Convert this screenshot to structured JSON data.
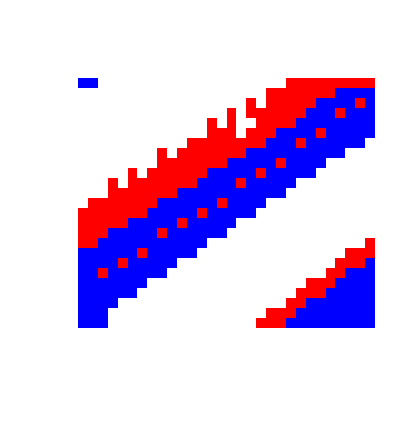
{
  "chart_data": {
    "type": "heatmap",
    "tick_labels": false,
    "colors": [
      "#ffffff",
      "#ff0000",
      "#0000ff"
    ],
    "cells": [
      [
        2,
        2,
        0,
        0,
        0,
        0,
        0,
        0,
        0,
        0,
        0,
        0,
        0,
        0,
        0,
        0,
        0,
        0,
        0,
        0,
        0,
        1,
        1,
        1,
        1,
        1,
        1,
        1,
        1,
        1
      ],
      [
        0,
        0,
        0,
        0,
        0,
        0,
        0,
        0,
        0,
        0,
        0,
        0,
        0,
        0,
        0,
        0,
        0,
        0,
        0,
        1,
        1,
        1,
        1,
        1,
        1,
        1,
        2,
        2,
        2,
        2
      ],
      [
        0,
        0,
        0,
        0,
        0,
        0,
        0,
        0,
        0,
        0,
        0,
        0,
        0,
        0,
        0,
        0,
        0,
        1,
        0,
        1,
        1,
        1,
        1,
        1,
        2,
        2,
        2,
        2,
        1,
        2
      ],
      [
        0,
        0,
        0,
        0,
        0,
        0,
        0,
        0,
        0,
        0,
        0,
        0,
        0,
        0,
        0,
        1,
        0,
        1,
        1,
        1,
        1,
        1,
        1,
        2,
        2,
        2,
        1,
        2,
        2,
        2
      ],
      [
        0,
        0,
        0,
        0,
        0,
        0,
        0,
        0,
        0,
        0,
        0,
        0,
        0,
        1,
        0,
        1,
        0,
        0,
        1,
        1,
        1,
        1,
        2,
        2,
        2,
        2,
        2,
        2,
        2,
        2
      ],
      [
        0,
        0,
        0,
        0,
        0,
        0,
        0,
        0,
        0,
        0,
        0,
        0,
        0,
        1,
        1,
        1,
        0,
        1,
        1,
        1,
        2,
        2,
        2,
        2,
        1,
        2,
        2,
        2,
        2,
        2
      ],
      [
        0,
        0,
        0,
        0,
        0,
        0,
        0,
        0,
        0,
        0,
        0,
        1,
        1,
        1,
        1,
        1,
        1,
        1,
        1,
        2,
        2,
        2,
        1,
        2,
        2,
        2,
        2,
        2,
        2,
        0
      ],
      [
        0,
        0,
        0,
        0,
        0,
        0,
        0,
        0,
        1,
        0,
        1,
        1,
        1,
        1,
        1,
        1,
        1,
        2,
        2,
        2,
        2,
        2,
        2,
        2,
        2,
        2,
        2,
        0,
        0,
        0
      ],
      [
        0,
        0,
        0,
        0,
        0,
        0,
        0,
        0,
        1,
        1,
        1,
        1,
        1,
        1,
        1,
        2,
        2,
        2,
        2,
        2,
        1,
        2,
        2,
        2,
        2,
        0,
        0,
        0,
        0,
        0
      ],
      [
        0,
        0,
        0,
        0,
        0,
        1,
        0,
        1,
        1,
        1,
        1,
        1,
        1,
        2,
        2,
        2,
        2,
        2,
        1,
        2,
        2,
        2,
        2,
        2,
        0,
        0,
        0,
        0,
        0,
        0
      ],
      [
        0,
        0,
        0,
        1,
        0,
        1,
        1,
        1,
        1,
        1,
        1,
        1,
        2,
        2,
        2,
        2,
        1,
        2,
        2,
        2,
        2,
        2,
        0,
        0,
        0,
        0,
        0,
        0,
        0,
        0
      ],
      [
        0,
        0,
        0,
        1,
        1,
        1,
        1,
        1,
        1,
        1,
        2,
        2,
        2,
        2,
        2,
        2,
        2,
        2,
        2,
        2,
        2,
        0,
        0,
        0,
        0,
        0,
        0,
        0,
        0,
        0
      ],
      [
        0,
        1,
        1,
        1,
        1,
        1,
        1,
        1,
        2,
        2,
        2,
        2,
        2,
        2,
        1,
        2,
        2,
        2,
        2,
        0,
        0,
        0,
        0,
        0,
        0,
        0,
        0,
        0,
        0,
        0
      ],
      [
        1,
        1,
        1,
        1,
        1,
        1,
        1,
        2,
        2,
        2,
        2,
        2,
        1,
        2,
        2,
        2,
        2,
        2,
        0,
        0,
        0,
        0,
        0,
        0,
        0,
        0,
        0,
        0,
        0,
        0
      ],
      [
        1,
        1,
        1,
        1,
        1,
        2,
        2,
        2,
        2,
        2,
        1,
        2,
        2,
        2,
        2,
        2,
        0,
        0,
        0,
        0,
        0,
        0,
        0,
        0,
        0,
        0,
        0,
        0,
        0,
        0
      ],
      [
        1,
        1,
        1,
        2,
        2,
        2,
        2,
        2,
        1,
        2,
        2,
        2,
        2,
        2,
        2,
        0,
        0,
        0,
        0,
        0,
        0,
        0,
        0,
        0,
        0,
        0,
        0,
        0,
        0,
        0
      ],
      [
        1,
        1,
        2,
        2,
        2,
        2,
        2,
        2,
        2,
        2,
        2,
        2,
        2,
        0,
        0,
        0,
        0,
        0,
        0,
        0,
        0,
        0,
        0,
        0,
        0,
        0,
        0,
        0,
        0,
        1
      ],
      [
        2,
        2,
        2,
        2,
        2,
        2,
        1,
        2,
        2,
        2,
        2,
        2,
        0,
        0,
        0,
        0,
        0,
        0,
        0,
        0,
        0,
        0,
        0,
        0,
        0,
        0,
        0,
        1,
        1,
        1
      ],
      [
        2,
        2,
        2,
        2,
        1,
        2,
        2,
        2,
        2,
        2,
        0,
        0,
        0,
        0,
        0,
        0,
        0,
        0,
        0,
        0,
        0,
        0,
        0,
        0,
        0,
        0,
        1,
        1,
        1,
        2
      ],
      [
        2,
        2,
        1,
        2,
        2,
        2,
        2,
        2,
        2,
        0,
        0,
        0,
        0,
        0,
        0,
        0,
        0,
        0,
        0,
        0,
        0,
        0,
        0,
        0,
        0,
        1,
        1,
        2,
        2,
        2
      ],
      [
        2,
        2,
        2,
        2,
        2,
        2,
        2,
        0,
        0,
        0,
        0,
        0,
        0,
        0,
        0,
        0,
        0,
        0,
        0,
        0,
        0,
        0,
        0,
        1,
        1,
        1,
        2,
        2,
        2,
        2
      ],
      [
        2,
        2,
        2,
        2,
        2,
        2,
        0,
        0,
        0,
        0,
        0,
        0,
        0,
        0,
        0,
        0,
        0,
        0,
        0,
        0,
        0,
        0,
        1,
        1,
        1,
        2,
        2,
        2,
        2,
        2
      ],
      [
        2,
        2,
        2,
        2,
        0,
        0,
        0,
        0,
        0,
        0,
        0,
        0,
        0,
        0,
        0,
        0,
        0,
        0,
        0,
        0,
        0,
        1,
        1,
        2,
        2,
        2,
        2,
        2,
        2,
        2
      ],
      [
        2,
        2,
        2,
        0,
        0,
        0,
        0,
        0,
        0,
        0,
        0,
        0,
        0,
        0,
        0,
        0,
        0,
        0,
        0,
        1,
        1,
        1,
        2,
        2,
        2,
        2,
        2,
        2,
        2,
        2
      ],
      [
        2,
        2,
        2,
        0,
        0,
        0,
        0,
        0,
        0,
        0,
        0,
        0,
        0,
        0,
        0,
        0,
        0,
        0,
        1,
        1,
        1,
        2,
        2,
        2,
        2,
        2,
        2,
        2,
        2,
        2
      ]
    ]
  }
}
